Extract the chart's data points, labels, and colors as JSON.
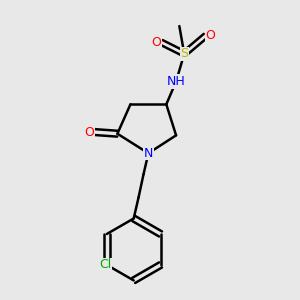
{
  "bg_color": "#e8e8e8",
  "bond_color": "#000000",
  "bond_lw": 1.8,
  "atom_colors": {
    "S": "#b8b800",
    "O": "#ff0000",
    "N": "#0000ff",
    "Cl": "#00aa00",
    "NH": "#00aaaa",
    "C": "#000000"
  },
  "font_size": 9,
  "font_size_small": 8
}
